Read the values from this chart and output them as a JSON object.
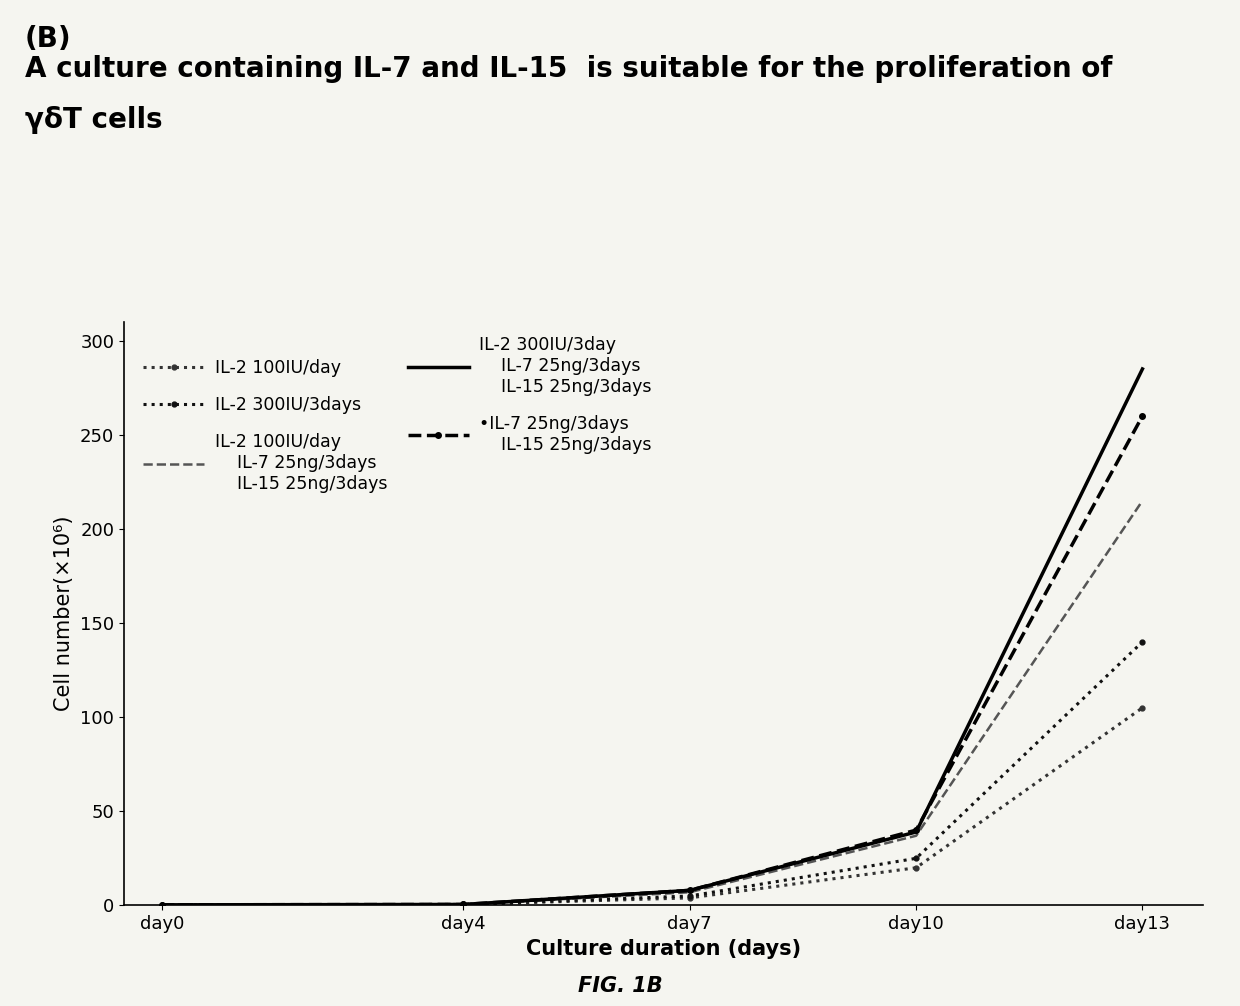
{
  "title_panel": "(B)",
  "title_main_line1": "A culture containing IL-7 and IL-15  is suitable for the proliferation of",
  "title_main_line2": "γδT cells",
  "xlabel": "Culture duration (days)",
  "ylabel": "Cell number(×10⁶)",
  "fig_note": "FIG. 1B",
  "x_values": [
    0,
    4,
    7,
    10,
    13
  ],
  "x_labels": [
    "day0",
    "day4",
    "day7",
    "day10",
    "day13"
  ],
  "ylim": [
    0,
    310
  ],
  "yticks": [
    0,
    50,
    100,
    150,
    200,
    250,
    300
  ],
  "series": [
    {
      "label": "IL-2 100IU/day",
      "values": [
        0.3,
        0.5,
        4,
        20,
        105
      ],
      "linestyle": "dotted",
      "linewidth": 2.2,
      "color": "#333333",
      "marker": ".",
      "markersize": 7
    },
    {
      "label": "IL-2 300IU/3days",
      "values": [
        0.3,
        0.5,
        5,
        25,
        140
      ],
      "linestyle": "dotted",
      "linewidth": 2.2,
      "color": "#111111",
      "marker": ".",
      "markersize": 7
    },
    {
      "label": "IL-2 100IU/day\n  IL-7 25ng/3days\n  IL-15 25ng/3days",
      "values": [
        0.3,
        0.5,
        7,
        37,
        215
      ],
      "linestyle": "dashed",
      "linewidth": 1.8,
      "color": "#555555",
      "marker": null,
      "markersize": 0
    },
    {
      "label": "IL-2 300IU/3day\n  IL-7 25ng/3days\n  IL-15 25ng/3days",
      "values": [
        0.3,
        0.5,
        8,
        39,
        285
      ],
      "linestyle": "solid",
      "linewidth": 2.5,
      "color": "#000000",
      "marker": null,
      "markersize": 0
    },
    {
      "label": "•IL-7 25ng/3days\n  IL-15 25ng/3days",
      "values": [
        0.3,
        0.5,
        8,
        40,
        260
      ],
      "linestyle": "dashed",
      "linewidth": 2.5,
      "color": "#000000",
      "marker": ".",
      "markersize": 8
    }
  ],
  "bg_color": "#f5f5f0",
  "text_color": "#000000",
  "title_fontsize": 20,
  "axis_label_fontsize": 15,
  "tick_fontsize": 13,
  "legend_fontsize": 12.5
}
